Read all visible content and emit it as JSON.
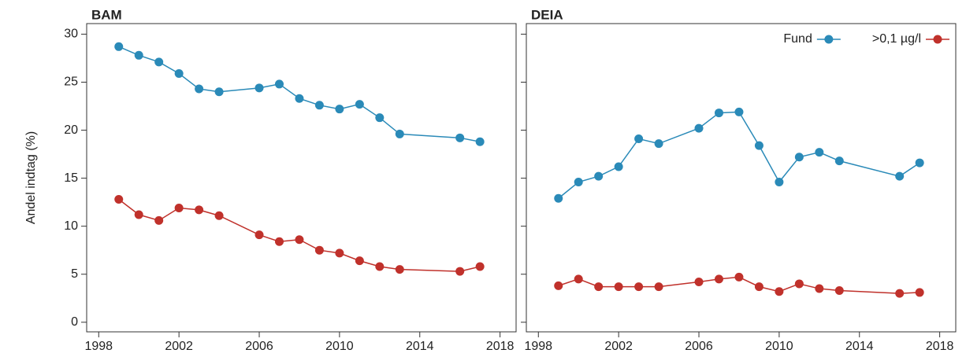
{
  "chart_data": [
    {
      "type": "line",
      "title": "BAM",
      "y_label": "Andel indtag (%)",
      "x": [
        1999,
        2000,
        2001,
        2002,
        2003,
        2004,
        2006,
        2007,
        2008,
        2009,
        2010,
        2011,
        2012,
        2013,
        2016,
        2017
      ],
      "series": [
        {
          "color": "#2a8ab8",
          "values": [
            28.7,
            27.8,
            27.1,
            25.9,
            24.3,
            24.0,
            24.4,
            24.8,
            23.3,
            22.6,
            22.2,
            22.7,
            21.3,
            19.6,
            19.2,
            18.8
          ]
        },
        {
          "color": "#c0312b",
          "values": [
            12.8,
            11.2,
            10.6,
            11.9,
            11.7,
            11.1,
            9.1,
            8.4,
            8.6,
            7.5,
            7.2,
            6.4,
            5.8,
            5.5,
            5.3,
            5.8
          ]
        }
      ],
      "xlim": [
        1997.4,
        2018.8
      ],
      "xticks": [
        1998,
        2002,
        2006,
        2010,
        2014,
        2018
      ],
      "ylim": [
        -1,
        31.1
      ],
      "yticks": [
        0,
        5,
        10,
        15,
        20,
        25,
        30
      ],
      "ytick_labels": true
    },
    {
      "type": "line",
      "title": "DEIA",
      "x": [
        1999,
        2000,
        2001,
        2002,
        2003,
        2004,
        2006,
        2007,
        2008,
        2009,
        2010,
        2011,
        2012,
        2013,
        2016,
        2017
      ],
      "series": [
        {
          "name": "Fund",
          "color": "#2a8ab8",
          "values": [
            12.9,
            14.6,
            15.2,
            16.2,
            19.1,
            18.6,
            20.2,
            21.8,
            21.9,
            18.4,
            14.6,
            17.2,
            17.7,
            16.8,
            15.2,
            16.6
          ]
        },
        {
          "name": ">0,1 µg/l",
          "color": "#c0312b",
          "values": [
            3.8,
            4.5,
            3.7,
            3.7,
            3.7,
            3.7,
            4.2,
            4.5,
            4.7,
            3.7,
            3.2,
            4.0,
            3.5,
            3.3,
            3.0,
            3.1
          ]
        }
      ],
      "xlim": [
        1997.4,
        2018.8
      ],
      "xticks": [
        1998,
        2002,
        2006,
        2010,
        2014,
        2018
      ],
      "ylim": [
        -1,
        31.1
      ],
      "yticks": [
        0,
        5,
        10,
        15,
        20,
        25,
        30
      ],
      "ytick_labels": false,
      "legend": "upper right"
    }
  ]
}
